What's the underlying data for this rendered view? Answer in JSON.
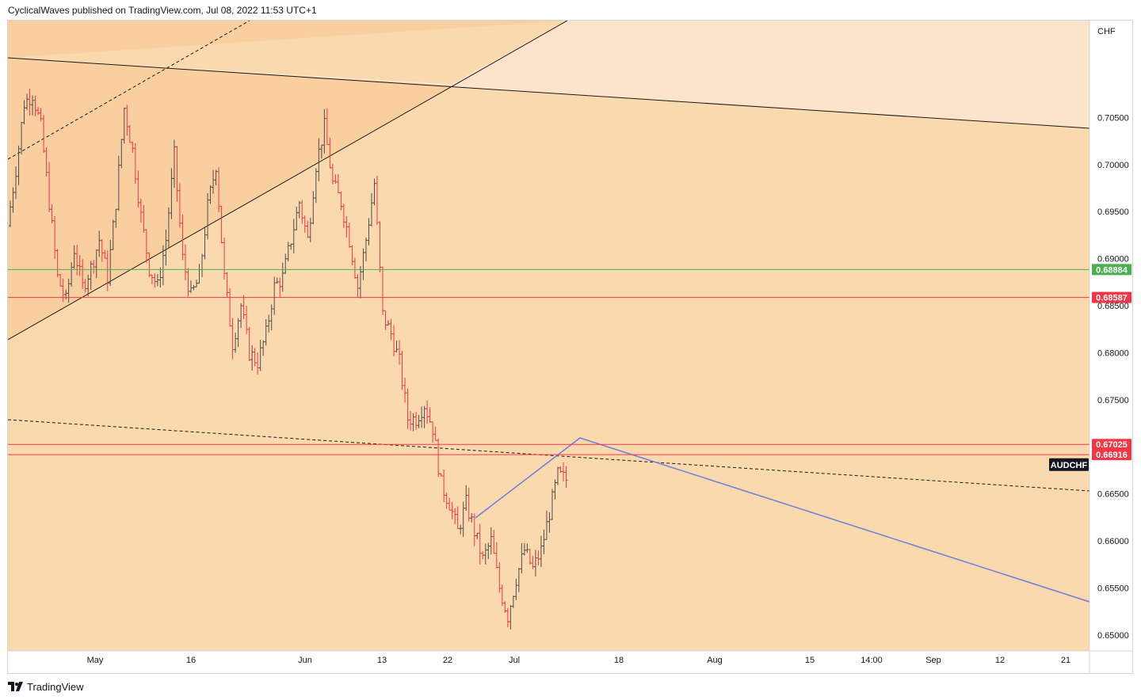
{
  "header": {
    "publish_line": "CyclicalWaves published on TradingView.com, Jul 08, 2022 11:53 UTC+1"
  },
  "footer": {
    "brand": "TradingView"
  },
  "colors": {
    "bg_zone_main": "#fbd9ae",
    "bg_zone_upper": "#fbe4cb",
    "bg_zone_triangle": "#f9cfa0",
    "candle_up": "#4d4d4d",
    "candle_down": "#f23645",
    "green_line": "#4caf50",
    "red_line": "#f23645",
    "blue_line": "#6b7ee0",
    "trend_line": "#1a1a1a"
  },
  "chart_data": {
    "type": "candlestick",
    "symbol": "AUDCHF",
    "currency_label": "CHF",
    "ylim": [
      0.6483,
      0.7153
    ],
    "y_ticks": [
      "0.70500",
      "0.70000",
      "0.69500",
      "0.69000",
      "0.68500",
      "0.68000",
      "0.67500",
      "0.66500",
      "0.66000",
      "0.65500",
      "0.65000"
    ],
    "x_ticks": [
      "May",
      "16",
      "Jun",
      "13",
      "22",
      "Jul",
      "18",
      "Aug",
      "15",
      "14:00",
      "Sep",
      "12",
      "21"
    ],
    "horizontal_levels": [
      {
        "value": 0.68884,
        "label": "0.68884",
        "color": "green"
      },
      {
        "value": 0.68587,
        "label": "0.68587",
        "color": "red"
      },
      {
        "value": 0.67025,
        "label": "0.67025",
        "color": "red"
      },
      {
        "value": 0.66916,
        "label": "0.66916",
        "color": "red"
      }
    ],
    "price_path": [
      [
        0.6935,
        0.6995,
        0.7065,
        0.7075,
        0.704,
        0.696,
        0.688,
        0.6855,
        0.691,
        0.687,
        0.689,
        0.692,
        0.688,
        0.696,
        0.706,
        0.7015,
        0.6945,
        0.689,
        0.687,
        0.692,
        0.701,
        0.69,
        0.686,
        0.688,
        0.6955,
        0.7,
        0.688,
        0.681,
        0.685,
        0.68,
        0.679,
        0.682,
        0.687,
        0.688,
        0.692,
        0.696,
        0.692,
        0.7,
        0.704,
        0.698,
        0.696,
        0.692,
        0.687,
        0.692,
        0.698,
        0.684,
        0.682,
        0.679,
        0.673,
        0.673,
        0.6745,
        0.672,
        0.666,
        0.664,
        0.661,
        0.664,
        0.661,
        0.658,
        0.66,
        0.655,
        0.652,
        0.656,
        0.659,
        0.657,
        0.659,
        0.663,
        0.667,
        0.6665
      ]
    ],
    "annotations": [
      {
        "type": "label",
        "text": "AUDCHF"
      }
    ]
  }
}
